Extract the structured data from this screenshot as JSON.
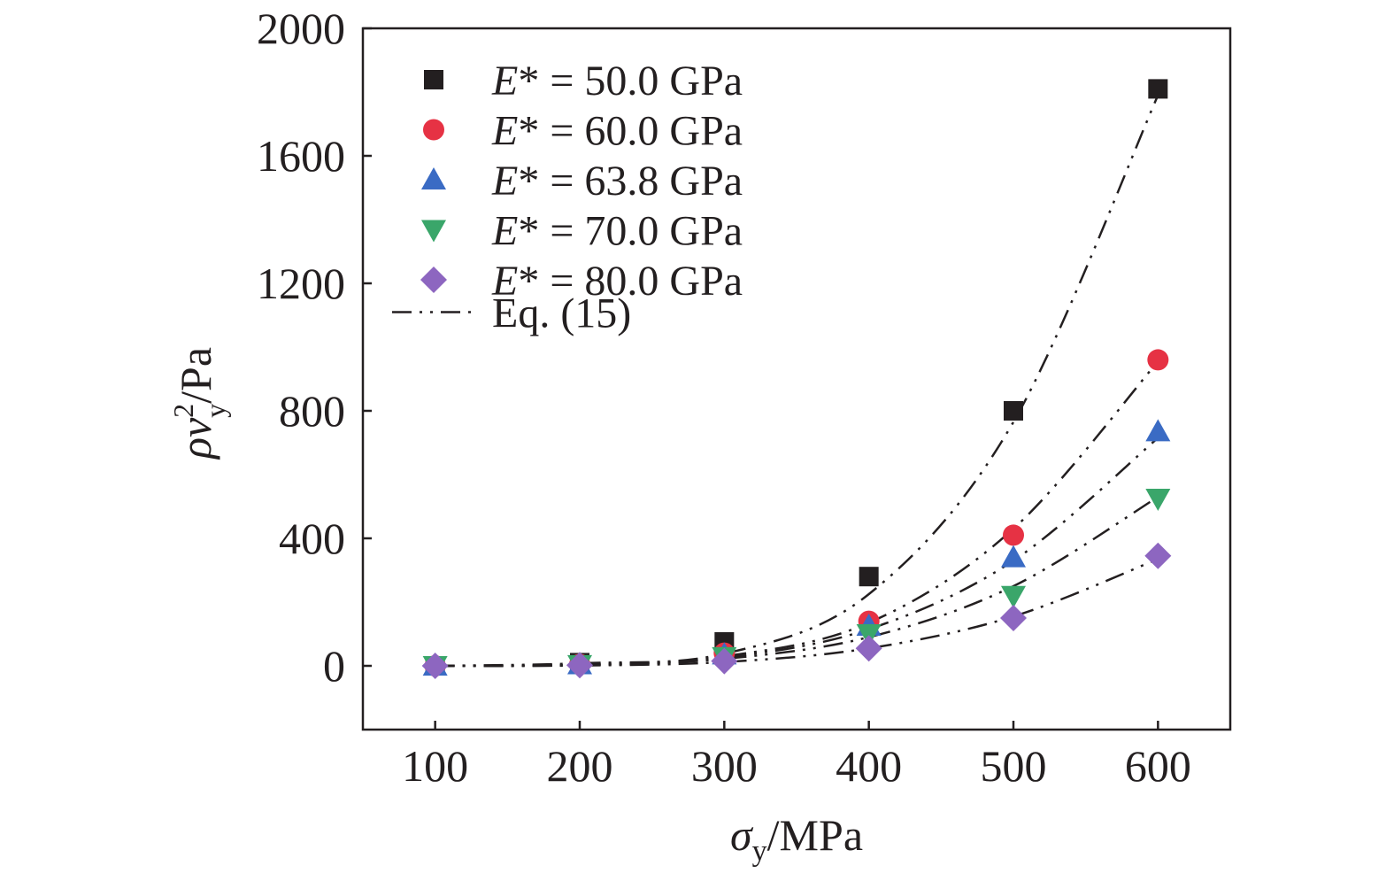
{
  "chart_data": {
    "type": "scatter",
    "xlabel": {
      "symbol": "σ",
      "subscript": "y",
      "unit": "/MPa"
    },
    "ylabel": {
      "symbol": "ρv",
      "superscript": "2",
      "subscript": "y",
      "unit": "/Pa"
    },
    "xlim": [
      50,
      650
    ],
    "ylim": [
      -200,
      2000
    ],
    "xticks": [
      100,
      200,
      300,
      400,
      500,
      600
    ],
    "yticks": [
      0,
      400,
      800,
      1200,
      1600,
      2000
    ],
    "x": [
      100,
      200,
      300,
      400,
      500,
      600
    ],
    "legend_position": "top-left",
    "series": [
      {
        "name": "E* = 50.0 GPa",
        "label_italic": "E",
        "label_rest": "* = 50.0 GPa",
        "marker": "square",
        "color": "#231f20",
        "values": [
          0,
          10,
          75,
          280,
          800,
          1810
        ],
        "fit": [
          0,
          8,
          38,
          225,
          765,
          1790
        ]
      },
      {
        "name": "E* = 60.0 GPa",
        "label_italic": "E",
        "label_rest": "* = 60.0 GPa",
        "marker": "circle",
        "color": "#e63244",
        "values": [
          0,
          5,
          40,
          140,
          410,
          960
        ],
        "fit": [
          0,
          4,
          30,
          135,
          430,
          955
        ]
      },
      {
        "name": "E* = 63.8 GPa",
        "label_italic": "E",
        "label_rest": "* = 63.8 GPa",
        "marker": "triangle-up",
        "color": "#3a6bc4",
        "values": [
          0,
          4,
          35,
          125,
          340,
          735
        ],
        "fit": [
          0,
          3,
          26,
          115,
          330,
          715
        ]
      },
      {
        "name": "E* = 70.0 GPa",
        "label_italic": "E",
        "label_rest": "* = 70.0 GPa",
        "marker": "triangle-down",
        "color": "#3aa66a",
        "values": [
          0,
          3,
          28,
          100,
          220,
          525
        ],
        "fit": [
          0,
          2,
          22,
          90,
          250,
          530
        ]
      },
      {
        "name": "E* = 80.0 GPa",
        "label_italic": "E",
        "label_rest": "* = 80.0 GPa",
        "marker": "diamond",
        "color": "#8d66c0",
        "values": [
          0,
          2,
          15,
          55,
          150,
          345
        ],
        "fit": [
          0,
          1,
          12,
          55,
          155,
          335
        ]
      }
    ],
    "fit_legend": "Eq. (15)",
    "fit_color": "#231f20"
  }
}
